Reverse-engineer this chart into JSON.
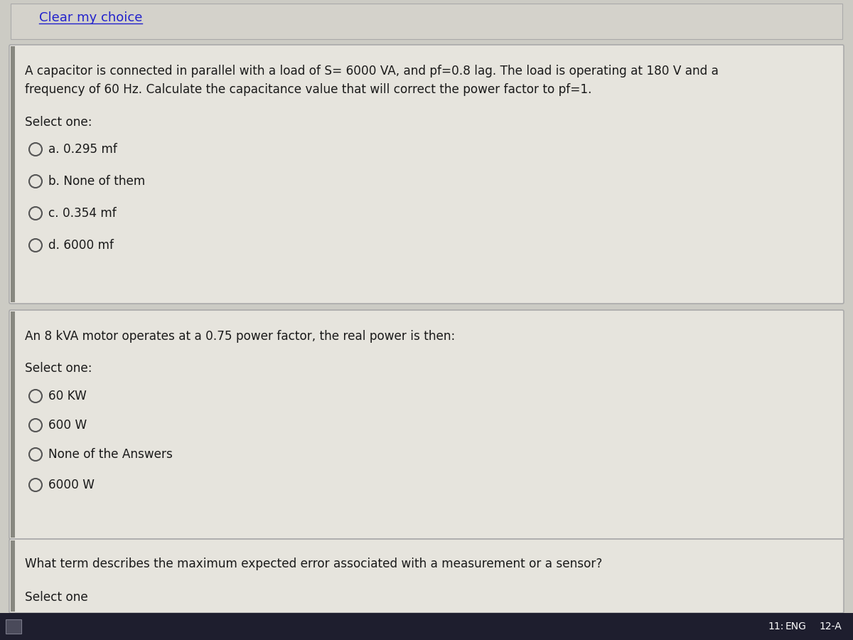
{
  "bg_color": "#cccbc4",
  "box_bg_color": "#e6e4dd",
  "box_border_color": "#aaaaaa",
  "text_color": "#1a1a1a",
  "link_color": "#2222cc",
  "taskbar_color": "#1e1e2e",
  "clear_choice_text": "Clear my choice",
  "q1_text_line1": "A capacitor is connected in parallel with a load of S= 6000 VA, and pf=0.8 lag. The load is operating at 180 V and a",
  "q1_text_line2": "frequency of 60 Hz. Calculate the capacitance value that will correct the power factor to pf=1.",
  "q1_select": "Select one:",
  "q1_options": [
    "a. 0.295 mf",
    "b. None of them",
    "c. 0.354 mf",
    "d. 6000 mf"
  ],
  "q2_text": "An 8 kVA motor operates at a 0.75 power factor, the real power is then:",
  "q2_select": "Select one:",
  "q2_options": [
    "60 KW",
    "600 W",
    "None of the Answers",
    "6000 W"
  ],
  "q3_text": "What term describes the maximum expected error associated with a measurement or a sensor?",
  "q3_select_partial": "Select one",
  "taskbar_text_eng": "ENG",
  "taskbar_text_date": "12-A",
  "taskbar_text_time": "11:"
}
